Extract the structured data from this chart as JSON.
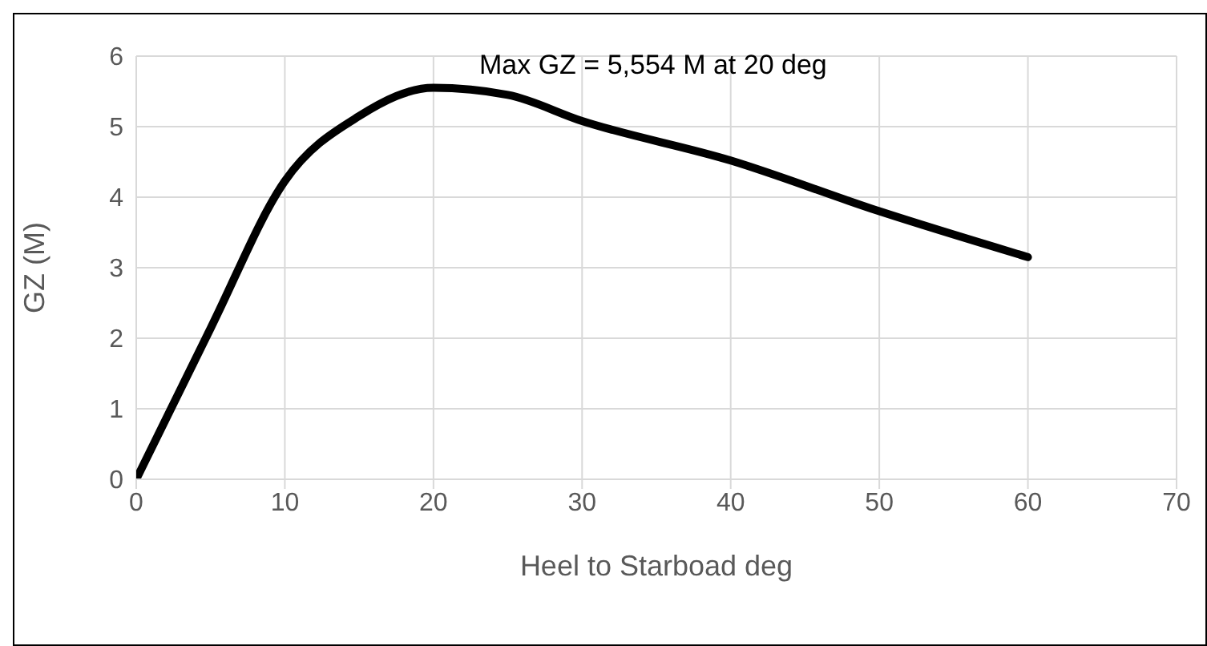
{
  "chart_data": {
    "type": "line",
    "xlabel": "Heel to Starboad deg",
    "ylabel": "GZ (M)",
    "annotations": [
      "Max GZ = 5,554 M at 20 deg"
    ],
    "x": [
      0,
      5,
      10,
      15,
      20,
      25,
      30,
      40,
      50,
      60
    ],
    "series": [
      {
        "color": "#000000",
        "values": [
          0,
          2.14,
          4.23,
          5.15,
          5.55,
          5.45,
          5.08,
          4.52,
          3.8,
          3.15
        ]
      }
    ],
    "xlim": [
      0,
      70
    ],
    "xticks": [
      0,
      10,
      20,
      30,
      40,
      50,
      60,
      70
    ],
    "ylim": [
      0,
      6
    ],
    "yticks": [
      0,
      1,
      2,
      3,
      4,
      5,
      6
    ],
    "grid": true,
    "legend": false,
    "marker": "none",
    "line_style": "solid"
  }
}
